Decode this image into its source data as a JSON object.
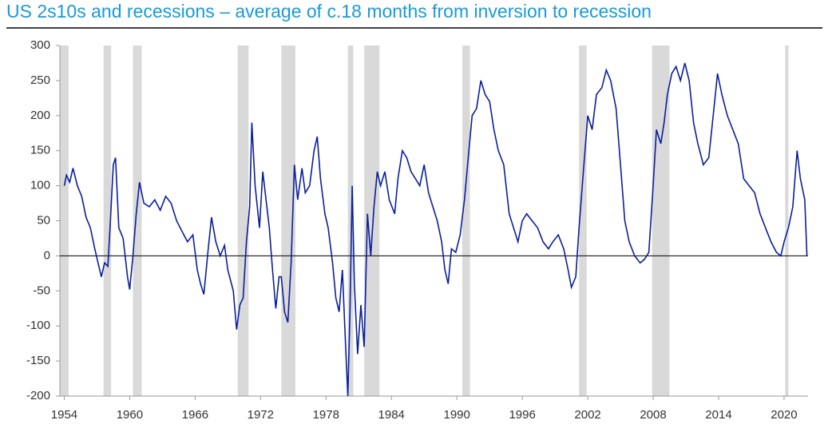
{
  "chart_data": {
    "type": "line",
    "title": "US 2s10s and recessions – average of c.18 months from inversion to recession",
    "xlim": [
      1953.6,
      2022.2
    ],
    "ylim": [
      -200,
      300
    ],
    "xticks": [
      1954,
      1960,
      1966,
      1972,
      1978,
      1984,
      1990,
      1996,
      2002,
      2008,
      2014,
      2020
    ],
    "yticks": [
      -200,
      -150,
      -100,
      -50,
      0,
      50,
      100,
      150,
      200,
      250,
      300
    ],
    "grid": false,
    "recession_color": "#d9d9d9",
    "recessions": [
      [
        1953.6,
        1954.4
      ],
      [
        1957.6,
        1958.3
      ],
      [
        1960.3,
        1961.1
      ],
      [
        1969.9,
        1970.9
      ],
      [
        1973.9,
        1975.2
      ],
      [
        1980.0,
        1980.5
      ],
      [
        1981.5,
        1982.9
      ],
      [
        1990.5,
        1991.2
      ],
      [
        2001.2,
        2001.9
      ],
      [
        2007.9,
        2009.5
      ],
      [
        2020.1,
        2020.4
      ]
    ],
    "x": [
      1954.0,
      1954.2,
      1954.5,
      1954.8,
      1955.2,
      1955.6,
      1956.0,
      1956.4,
      1956.8,
      1957.1,
      1957.4,
      1957.7,
      1958.0,
      1958.2,
      1958.5,
      1958.7,
      1959.0,
      1959.4,
      1959.8,
      1960.0,
      1960.3,
      1960.6,
      1960.9,
      1961.3,
      1961.8,
      1962.3,
      1962.8,
      1963.3,
      1963.8,
      1964.3,
      1964.8,
      1965.3,
      1965.8,
      1966.2,
      1966.5,
      1966.8,
      1967.2,
      1967.5,
      1967.9,
      1968.3,
      1968.7,
      1969.0,
      1969.5,
      1969.8,
      1970.1,
      1970.4,
      1970.7,
      1971.0,
      1971.2,
      1971.5,
      1971.9,
      1972.2,
      1972.5,
      1972.8,
      1973.1,
      1973.4,
      1973.7,
      1973.9,
      1974.2,
      1974.5,
      1974.8,
      1975.1,
      1975.4,
      1975.8,
      1976.1,
      1976.5,
      1976.9,
      1977.2,
      1977.5,
      1977.9,
      1978.2,
      1978.6,
      1978.9,
      1979.2,
      1979.5,
      1979.8,
      1980.0,
      1980.2,
      1980.4,
      1980.6,
      1980.9,
      1981.2,
      1981.5,
      1981.8,
      1982.1,
      1982.4,
      1982.7,
      1983.0,
      1983.4,
      1983.8,
      1984.3,
      1984.6,
      1985.0,
      1985.4,
      1985.8,
      1986.2,
      1986.6,
      1987.0,
      1987.4,
      1987.8,
      1988.2,
      1988.6,
      1988.9,
      1989.2,
      1989.5,
      1989.9,
      1990.3,
      1990.7,
      1991.1,
      1991.4,
      1991.8,
      1992.2,
      1992.6,
      1993.0,
      1993.4,
      1993.8,
      1994.3,
      1994.8,
      1995.2,
      1995.6,
      1996.0,
      1996.4,
      1996.9,
      1997.4,
      1997.9,
      1998.4,
      1998.8,
      1999.3,
      1999.8,
      2000.2,
      2000.5,
      2000.9,
      2001.2,
      2001.6,
      2002.0,
      2002.4,
      2002.8,
      2003.3,
      2003.7,
      2004.1,
      2004.6,
      2005.0,
      2005.4,
      2005.8,
      2006.3,
      2006.8,
      2007.2,
      2007.6,
      2008.0,
      2008.3,
      2008.7,
      2009.0,
      2009.3,
      2009.7,
      2010.1,
      2010.5,
      2010.9,
      2011.3,
      2011.7,
      2012.1,
      2012.6,
      2013.1,
      2013.5,
      2013.9,
      2014.3,
      2014.8,
      2015.3,
      2015.8,
      2016.3,
      2016.8,
      2017.3,
      2017.8,
      2018.3,
      2018.8,
      2019.3,
      2019.7,
      2020.0,
      2020.4,
      2020.8,
      2021.2,
      2021.5,
      2021.9,
      2022.1
    ],
    "series": [
      {
        "color": "#0a1f9a",
        "values": [
          100,
          115,
          105,
          125,
          100,
          85,
          55,
          40,
          10,
          -10,
          -30,
          -10,
          -15,
          40,
          130,
          140,
          40,
          25,
          -30,
          -48,
          0,
          60,
          105,
          75,
          70,
          80,
          65,
          85,
          75,
          50,
          35,
          20,
          30,
          -20,
          -40,
          -55,
          10,
          55,
          20,
          0,
          15,
          -20,
          -50,
          -105,
          -70,
          -60,
          20,
          70,
          190,
          100,
          40,
          120,
          80,
          40,
          -20,
          -75,
          -30,
          -30,
          -80,
          -95,
          -10,
          130,
          80,
          125,
          90,
          100,
          150,
          170,
          110,
          60,
          40,
          -10,
          -60,
          -80,
          -20,
          -130,
          -200,
          -80,
          100,
          -40,
          -140,
          -70,
          -130,
          60,
          0,
          70,
          120,
          100,
          120,
          80,
          60,
          110,
          150,
          140,
          120,
          110,
          100,
          130,
          90,
          70,
          50,
          20,
          -20,
          -40,
          10,
          5,
          30,
          80,
          150,
          200,
          210,
          250,
          230,
          220,
          180,
          150,
          130,
          60,
          40,
          20,
          50,
          60,
          50,
          40,
          20,
          10,
          20,
          30,
          10,
          -20,
          -45,
          -30,
          40,
          120,
          200,
          180,
          230,
          240,
          265,
          250,
          210,
          130,
          50,
          20,
          0,
          -10,
          -5,
          5,
          100,
          180,
          160,
          190,
          230,
          260,
          270,
          250,
          275,
          250,
          190,
          160,
          130,
          140,
          200,
          260,
          230,
          200,
          180,
          160,
          110,
          100,
          90,
          60,
          40,
          20,
          5,
          0,
          20,
          40,
          70,
          150,
          110,
          80,
          0
        ]
      }
    ]
  }
}
